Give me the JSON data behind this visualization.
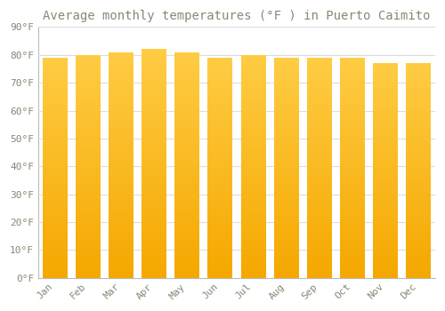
{
  "title": "Average monthly temperatures (°F ) in Puerto Caimito",
  "months": [
    "Jan",
    "Feb",
    "Mar",
    "Apr",
    "May",
    "Jun",
    "Jul",
    "Aug",
    "Sep",
    "Oct",
    "Nov",
    "Dec"
  ],
  "values": [
    79,
    80,
    81,
    82,
    81,
    79,
    80,
    79,
    79,
    79,
    77,
    77
  ],
  "bar_color_bottom": "#F5A800",
  "bar_color_top": "#FFCC44",
  "background_color": "#FFFFFF",
  "plot_bg_color": "#FFFFFF",
  "grid_color": "#DDDDDD",
  "text_color": "#888877",
  "ylim": [
    0,
    90
  ],
  "ytick_step": 10,
  "title_fontsize": 10,
  "tick_fontsize": 8,
  "bar_width": 0.75
}
